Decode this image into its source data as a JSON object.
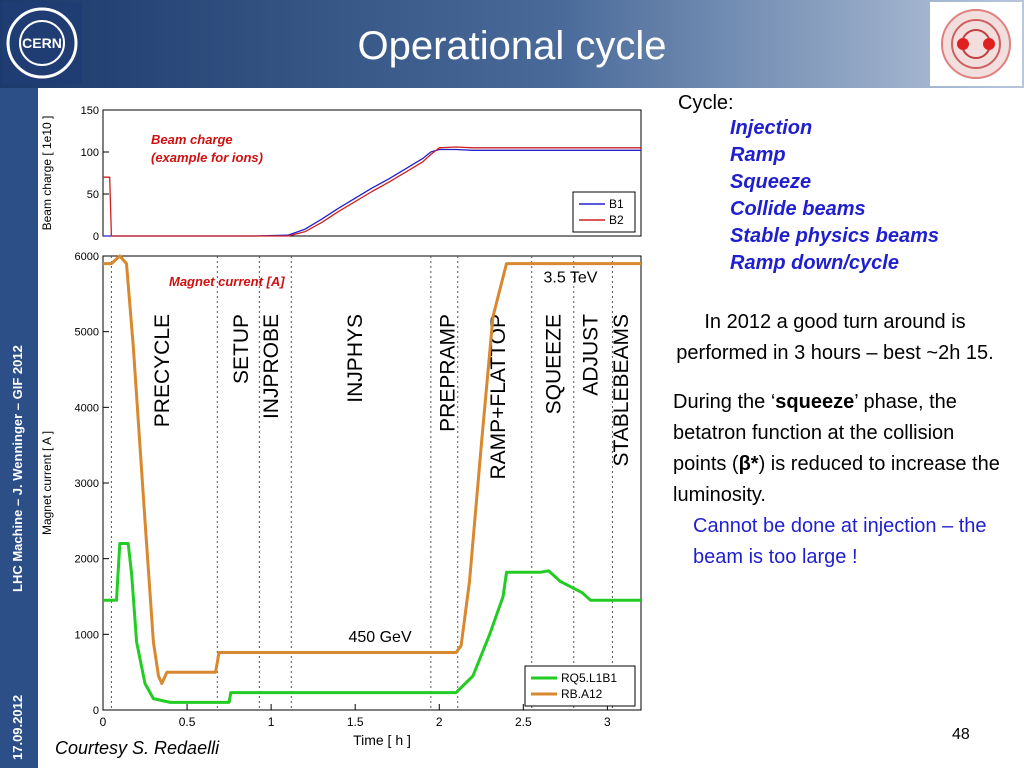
{
  "slide": {
    "title": "Operational cycle",
    "footer_left": "LHC Machine – J. Wenninger – GIF 2012",
    "date": "17.09.2012",
    "page_number": "48",
    "courtesy": "Courtesy S. Redaelli",
    "logo_text": "CERN"
  },
  "right_panel": {
    "cycle_label": "Cycle:",
    "cycle_items": [
      "Injection",
      "Ramp",
      "Squeeze",
      "Collide beams",
      "Stable physics beams",
      "Ramp down/cycle"
    ],
    "paragraph1": "In 2012 a good turn around is performed in 3 hours – best ~2h 15.",
    "p2_start": "During the ‘",
    "p2_bold": "squeeze",
    "p2_mid": "’ phase, the betatron function at the collision points (",
    "p2_beta": "β*",
    "p2_end": ") is reduced to increase the luminosity.",
    "p3": "Cannot be done at injection – the beam is too large !"
  },
  "chart_data": [
    {
      "type": "line",
      "annotation": "Beam charge (example for ions)",
      "ylabel": "Beam charge [ 1e10 ]",
      "xlim": [
        0,
        3.2
      ],
      "ylim": [
        0,
        150
      ],
      "yticks": [
        "0",
        "50",
        "100",
        "150"
      ],
      "legend_position": "bottom-right",
      "series": [
        {
          "name": "B1",
          "color": "#2020d0",
          "x": [
            0.0,
            0.04,
            0.05,
            0.9,
            1.1,
            1.2,
            1.3,
            1.4,
            1.5,
            1.6,
            1.7,
            1.8,
            1.9,
            1.95,
            2.0,
            2.1,
            2.2,
            2.5,
            3.2
          ],
          "y": [
            0,
            0,
            0,
            0,
            1,
            8,
            20,
            33,
            45,
            57,
            68,
            80,
            92,
            100,
            103,
            103,
            102,
            102,
            102
          ]
        },
        {
          "name": "B2",
          "color": "#d02020",
          "x": [
            0.0,
            0.04,
            0.05,
            0.9,
            1.1,
            1.2,
            1.3,
            1.4,
            1.5,
            1.6,
            1.7,
            1.8,
            1.9,
            1.95,
            2.0,
            2.1,
            2.2,
            2.5,
            3.2
          ],
          "y": [
            70,
            70,
            0,
            0,
            0,
            5,
            16,
            29,
            41,
            53,
            64,
            76,
            88,
            97,
            105,
            106,
            105,
            105,
            105
          ]
        }
      ]
    },
    {
      "type": "line",
      "annotation": "Magnet current [A]",
      "xlabel": "Time [ h ]",
      "ylabel": "Magnet current [ A ]",
      "xlim": [
        0,
        3.2
      ],
      "ylim": [
        0,
        6000
      ],
      "xticks": [
        "0",
        "0.5",
        "1",
        "1.5",
        "2",
        "2.5",
        "3"
      ],
      "yticks": [
        "0",
        "1000",
        "2000",
        "3000",
        "4000",
        "5000",
        "6000"
      ],
      "legend_position": "bottom-right",
      "energy_labels": {
        "high": "3.5 TeV",
        "low": "450 GeV"
      },
      "phases": [
        {
          "name": "PRECYCLE",
          "x": 0.35
        },
        {
          "name": "SETUP",
          "x": 0.82
        },
        {
          "name": "INJPROBE",
          "x": 1.0
        },
        {
          "name": "INJPHYS",
          "x": 1.5
        },
        {
          "name": "PREPRAMP",
          "x": 2.05
        },
        {
          "name": "RAMP+FLATTOP",
          "x": 2.35
        },
        {
          "name": "SQUEEZE",
          "x": 2.68
        },
        {
          "name": "ADJUST",
          "x": 2.9
        },
        {
          "name": "STABLEBEAMS",
          "x": 3.08
        }
      ],
      "phase_boundaries": [
        0.05,
        0.68,
        0.93,
        1.12,
        1.95,
        2.11,
        2.55,
        2.8,
        3.03
      ],
      "series": [
        {
          "name": "RQ5.L1B1",
          "color": "#22cc22",
          "x": [
            0.0,
            0.08,
            0.1,
            0.15,
            0.17,
            0.2,
            0.25,
            0.3,
            0.4,
            0.7,
            0.75,
            0.76,
            2.1,
            2.2,
            2.3,
            2.38,
            2.4,
            2.6,
            2.65,
            2.72,
            2.85,
            2.9,
            3.2
          ],
          "y": [
            1450,
            1450,
            2200,
            2200,
            1800,
            900,
            350,
            150,
            100,
            100,
            100,
            230,
            230,
            450,
            1000,
            1500,
            1820,
            1820,
            1840,
            1700,
            1550,
            1450,
            1450
          ]
        },
        {
          "name": "RB.A12",
          "color": "#d8882e",
          "x": [
            0.0,
            0.05,
            0.1,
            0.14,
            0.18,
            0.25,
            0.3,
            0.33,
            0.35,
            0.38,
            0.65,
            0.67,
            0.69,
            2.1,
            2.13,
            2.18,
            2.25,
            2.32,
            2.4,
            3.2
          ],
          "y": [
            5900,
            5900,
            6000,
            5900,
            4800,
            2500,
            900,
            450,
            350,
            500,
            500,
            500,
            760,
            760,
            850,
            1700,
            3500,
            5200,
            5900,
            5900
          ]
        }
      ]
    }
  ]
}
